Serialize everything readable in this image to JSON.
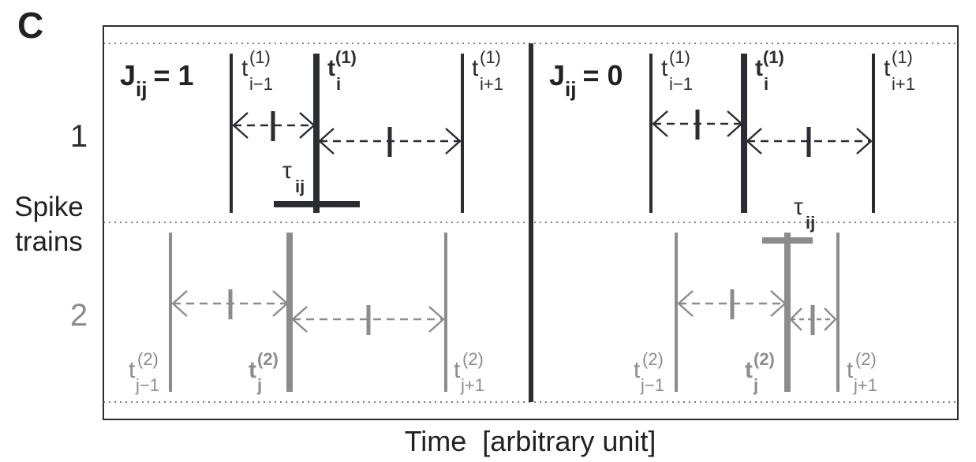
{
  "panel_label": "C",
  "y_axis": {
    "row1": "1",
    "row2": "2",
    "label_line1": "Spike",
    "label_line2": "trains"
  },
  "x_axis": {
    "label": "Time  [arbitrary unit]"
  },
  "left_panel": {
    "title_main": "J",
    "title_sub": "ij",
    "title_value": "= 1",
    "train1": [
      {
        "base": "t",
        "sup": "(1)",
        "sub": "i−1"
      },
      {
        "base": "t",
        "sup": "(1)",
        "sub": "i"
      },
      {
        "base": "t",
        "sup": "(1)",
        "sub": "i+1"
      }
    ],
    "train2": [
      {
        "base": "t",
        "sup": "(2)",
        "sub": "j−1"
      },
      {
        "base": "t",
        "sup": "(2)",
        "sub": "j"
      },
      {
        "base": "t",
        "sup": "(2)",
        "sub": "j+1"
      }
    ],
    "tau": {
      "base": "τ",
      "sub": "ij"
    }
  },
  "right_panel": {
    "title_main": "J",
    "title_sub": "ij",
    "title_value": "= 0",
    "train1": [
      {
        "base": "t",
        "sup": "(1)",
        "sub": "i−1"
      },
      {
        "base": "t",
        "sup": "(1)",
        "sub": "i"
      },
      {
        "base": "t",
        "sup": "(1)",
        "sub": "i+1"
      }
    ],
    "train2": [
      {
        "base": "t",
        "sup": "(2)",
        "sub": "j−1"
      },
      {
        "base": "t",
        "sup": "(2)",
        "sub": "j"
      },
      {
        "base": "t",
        "sup": "(2)",
        "sub": "j+1"
      }
    ],
    "tau": {
      "base": "τ",
      "sub": "ij"
    }
  },
  "colors": {
    "train1": "#2b2d33",
    "train2": "#8c8c8c",
    "frame": "#2b2d33",
    "dotted": "#555555"
  }
}
